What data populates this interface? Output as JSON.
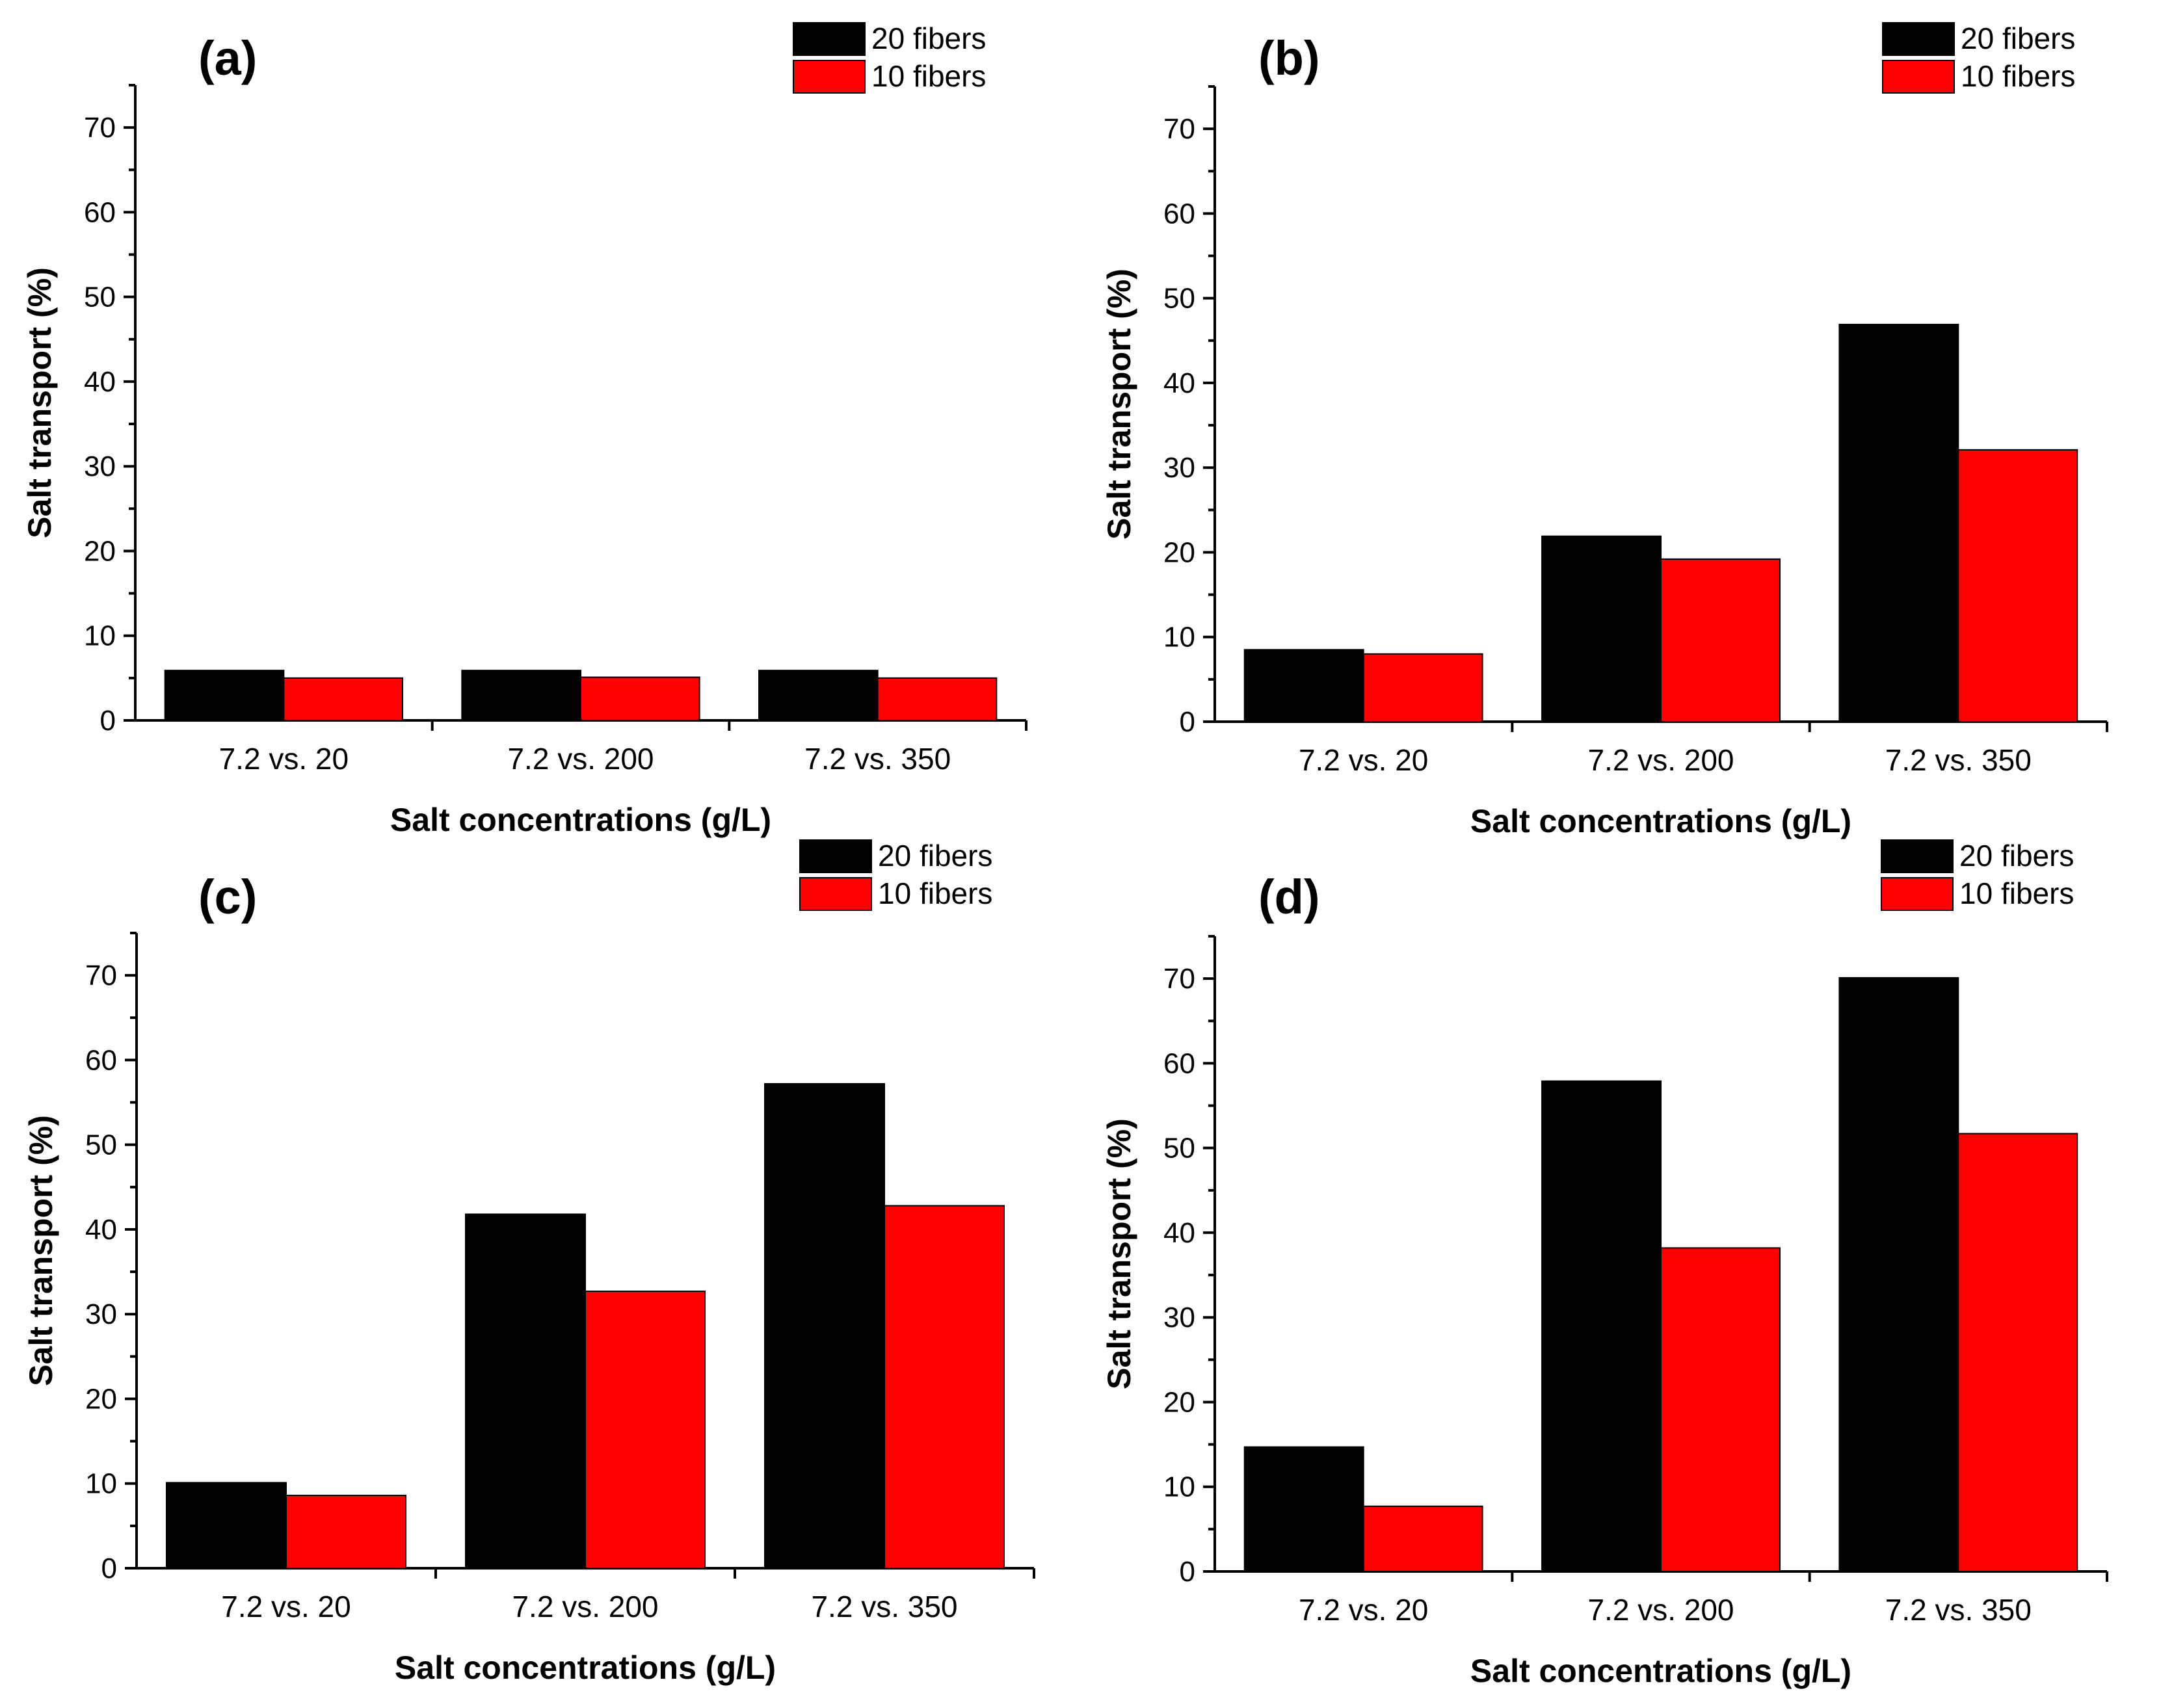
{
  "chart_data": [
    {
      "type": "bar",
      "panel_label": "(a)",
      "categories": [
        "7.2 vs. 20",
        "7.2 vs. 200",
        "7.2 vs. 350"
      ],
      "series": [
        {
          "name": "20 fibers",
          "color": "#000000",
          "values": [
            5.9,
            5.9,
            5.9
          ]
        },
        {
          "name": "10 fibers",
          "color": "#ff0000",
          "values": [
            5.0,
            5.1,
            5.0
          ]
        }
      ],
      "xlabel": "Salt concentrations (g/L)",
      "ylabel": "Salt transport (%)",
      "ylim": [
        0,
        75
      ],
      "yticks": [
        0,
        10,
        20,
        30,
        40,
        50,
        60,
        70
      ],
      "legend_position": "top-right"
    },
    {
      "type": "bar",
      "panel_label": "(b)",
      "categories": [
        "7.2 vs. 20",
        "7.2 vs. 200",
        "7.2 vs. 350"
      ],
      "series": [
        {
          "name": "20 fibers",
          "color": "#000000",
          "values": [
            8.5,
            21.9,
            46.9
          ]
        },
        {
          "name": "10 fibers",
          "color": "#ff0000",
          "values": [
            8.0,
            19.2,
            32.1
          ]
        }
      ],
      "xlabel": "Salt concentrations (g/L)",
      "ylabel": "Salt transport (%)",
      "ylim": [
        0,
        75
      ],
      "yticks": [
        0,
        10,
        20,
        30,
        40,
        50,
        60,
        70
      ],
      "legend_position": "top-right"
    },
    {
      "type": "bar",
      "panel_label": "(c)",
      "categories": [
        "7.2 vs. 20",
        "7.2 vs. 200",
        "7.2 vs. 350"
      ],
      "series": [
        {
          "name": "20 fibers",
          "color": "#000000",
          "values": [
            10.1,
            41.8,
            57.2
          ]
        },
        {
          "name": "10 fibers",
          "color": "#ff0000",
          "values": [
            8.6,
            32.7,
            42.8
          ]
        }
      ],
      "xlabel": "Salt concentrations (g/L)",
      "ylabel": "Salt transport (%)",
      "ylim": [
        0,
        75
      ],
      "yticks": [
        0,
        10,
        20,
        30,
        40,
        50,
        60,
        70
      ],
      "legend_position": "top-right"
    },
    {
      "type": "bar",
      "panel_label": "(d)",
      "categories": [
        "7.2 vs. 20",
        "7.2 vs. 200",
        "7.2 vs. 350"
      ],
      "series": [
        {
          "name": "20 fibers",
          "color": "#000000",
          "values": [
            14.7,
            57.9,
            70.1
          ]
        },
        {
          "name": "10 fibers",
          "color": "#ff0000",
          "values": [
            7.7,
            38.2,
            51.7
          ]
        }
      ],
      "xlabel": "Salt concentrations (g/L)",
      "ylabel": "Salt transport (%)",
      "ylim": [
        0,
        75
      ],
      "yticks": [
        0,
        10,
        20,
        30,
        40,
        50,
        60,
        70
      ],
      "legend_position": "top-right"
    }
  ]
}
